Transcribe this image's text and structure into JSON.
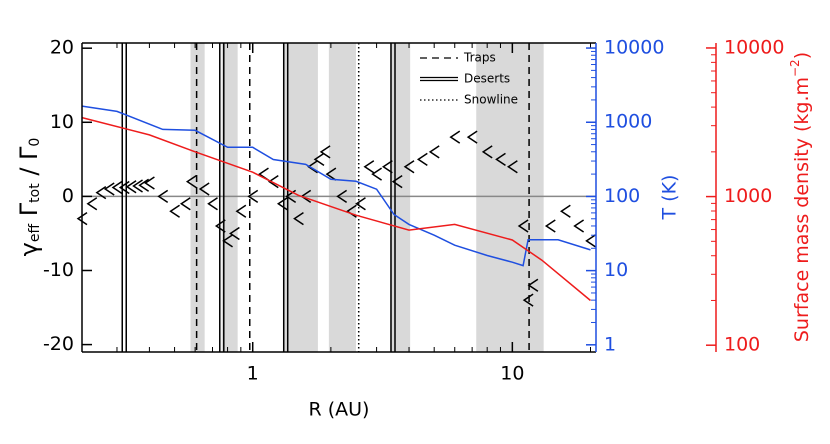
{
  "chart_data": {
    "type": "line",
    "xlabel": "R (AU)",
    "ylabel": [
      "γ",
      "eff",
      " Γ",
      "tot",
      " / Γ",
      "0"
    ],
    "y2label": "T (K)",
    "y3label": [
      "Surface mass density (kg.m",
      "−2",
      ")"
    ],
    "xscale": "log",
    "xlim": [
      0.22,
      21
    ],
    "xticks": [
      1,
      10
    ],
    "xminorticks": [
      0.3,
      0.4,
      0.5,
      0.6,
      0.7,
      0.8,
      0.9,
      2,
      3,
      4,
      5,
      6,
      7,
      8,
      9,
      20
    ],
    "ylim": [
      -21,
      20.7
    ],
    "yticks": [
      -20,
      -10,
      0,
      10,
      20
    ],
    "y2scale": "log",
    "y2lim": [
      0.8,
      11700
    ],
    "y2ticks": [
      1,
      10,
      100,
      1000,
      10000
    ],
    "y2color": "#1f4fe0",
    "y3scale": "log",
    "y3lim": [
      90,
      10800
    ],
    "y3ticks": [
      100,
      1000,
      10000
    ],
    "y3color": "#ee1c1c",
    "shaded_regions": [
      [
        0.576,
        0.653
      ],
      [
        0.759,
        0.875
      ],
      [
        1.317,
        1.783
      ],
      [
        1.965,
        2.499
      ],
      [
        3.38,
        4.04
      ],
      [
        7.26,
        13.2
      ]
    ],
    "vlines": [
      {
        "label": "Traps",
        "style": "dashed",
        "x": [
          0.608,
          0.974,
          11.6
        ]
      },
      {
        "label": "Deserts",
        "style": "double",
        "x": [
          0.32,
          0.76,
          1.34,
          3.47
        ]
      },
      {
        "label": "Snowline",
        "style": "dotted",
        "x": [
          2.56
        ]
      }
    ],
    "series": [
      {
        "color": "#000000",
        "marker": "chevron",
        "axis": "y",
        "x": [
          0.22,
          0.24,
          0.26,
          0.28,
          0.3,
          0.32,
          0.34,
          0.36,
          0.38,
          0.4,
          0.45,
          0.5,
          0.55,
          0.58,
          0.65,
          0.7,
          0.75,
          0.8,
          0.85,
          0.9,
          1.0,
          1.1,
          1.2,
          1.3,
          1.4,
          1.5,
          1.6,
          1.7,
          1.8,
          1.9,
          2.0,
          2.2,
          2.4,
          2.6,
          2.8,
          3.0,
          3.3,
          3.6,
          4.0,
          4.5,
          5,
          6,
          7,
          8,
          9,
          10,
          11,
          11.5,
          12,
          14,
          16,
          18,
          20
        ],
        "values": [
          -3,
          -1,
          0.5,
          1,
          1.2,
          1.2,
          1.3,
          1.4,
          1.5,
          1.8,
          0,
          -2,
          -1,
          2,
          1,
          -1,
          -4,
          -6,
          -5,
          -2,
          0,
          3,
          2,
          -1,
          0,
          -3,
          0,
          4,
          5,
          6,
          3,
          0,
          -2,
          -1,
          4,
          3,
          4,
          2,
          4,
          5,
          6,
          8,
          8,
          6,
          5,
          4,
          -4,
          -14,
          -12,
          -4,
          -2,
          -4,
          -6
        ]
      },
      {
        "color": "#1f4fe0",
        "axis": "y2",
        "x": [
          0.22,
          0.3,
          0.45,
          0.6,
          0.8,
          1.0,
          1.2,
          1.6,
          2.0,
          2.5,
          3.0,
          3.5,
          4,
          5,
          6,
          8,
          10,
          11,
          11.5,
          15,
          20
        ],
        "values": [
          1650,
          1400,
          800,
          780,
          460,
          460,
          315,
          270,
          170,
          160,
          125,
          57,
          42,
          30,
          22,
          16,
          13,
          11.7,
          26,
          26,
          19
        ]
      },
      {
        "color": "#ee1c1c",
        "axis": "y3",
        "x": [
          0.22,
          0.4,
          0.6,
          1.0,
          1.5,
          2.5,
          4,
          6,
          10,
          13,
          20
        ],
        "values": [
          3400,
          2600,
          2000,
          1460,
          1020,
          750,
          595,
          650,
          510,
          373,
          200
        ]
      }
    ]
  }
}
